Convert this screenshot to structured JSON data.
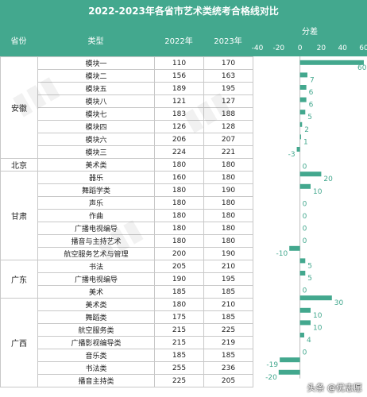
{
  "title": "2022-2023年各省市艺术类统考合格线对比",
  "headers": {
    "province": "省份",
    "category": "类型",
    "y2022": "2022年",
    "y2023": "2023年",
    "diff": "分差"
  },
  "chart_data": {
    "type": "bar",
    "orientation": "horizontal",
    "title": "分差",
    "xlim": [
      -40,
      60
    ],
    "ticks": [
      "-40",
      "-20",
      "0",
      "20",
      "40",
      "60"
    ],
    "tick_values": [
      -40,
      -20,
      0,
      20,
      40,
      60
    ],
    "bar_color": "#43a88e",
    "groups": [
      {
        "province": "安徽",
        "rows": [
          {
            "category": "模块一",
            "y2022": "110",
            "y2023": "170",
            "diff": 60
          },
          {
            "category": "模块二",
            "y2022": "156",
            "y2023": "163",
            "diff": 7
          },
          {
            "category": "模块五",
            "y2022": "189",
            "y2023": "195",
            "diff": 6
          },
          {
            "category": "模块八",
            "y2022": "121",
            "y2023": "127",
            "diff": 6
          },
          {
            "category": "模块七",
            "y2022": "183",
            "y2023": "188",
            "diff": 5
          },
          {
            "category": "模块四",
            "y2022": "126",
            "y2023": "128",
            "diff": 2
          },
          {
            "category": "模块六",
            "y2022": "206",
            "y2023": "207",
            "diff": 1
          },
          {
            "category": "模块三",
            "y2022": "224",
            "y2023": "221",
            "diff": -3
          }
        ]
      },
      {
        "province": "北京",
        "rows": [
          {
            "category": "美术类",
            "y2022": "180",
            "y2023": "180",
            "diff": 0
          }
        ]
      },
      {
        "province": "甘肃",
        "rows": [
          {
            "category": "器乐",
            "y2022": "160",
            "y2023": "180",
            "diff": 20
          },
          {
            "category": "舞蹈学类",
            "y2022": "180",
            "y2023": "190",
            "diff": 10
          },
          {
            "category": "声乐",
            "y2022": "180",
            "y2023": "180",
            "diff": 0
          },
          {
            "category": "作曲",
            "y2022": "180",
            "y2023": "180",
            "diff": 0
          },
          {
            "category": "广播电视编导",
            "y2022": "180",
            "y2023": "180",
            "diff": 0
          },
          {
            "category": "播音与主持艺术",
            "y2022": "180",
            "y2023": "180",
            "diff": 0
          },
          {
            "category": "航空服务艺术与管理",
            "y2022": "200",
            "y2023": "190",
            "diff": -10
          }
        ]
      },
      {
        "province": "广东",
        "rows": [
          {
            "category": "书法",
            "y2022": "205",
            "y2023": "210",
            "diff": 5
          },
          {
            "category": "广播电视编导",
            "y2022": "190",
            "y2023": "195",
            "diff": 5
          },
          {
            "category": "美术",
            "y2022": "185",
            "y2023": "185",
            "diff": 0
          }
        ]
      },
      {
        "province": "广西",
        "rows": [
          {
            "category": "美术类",
            "y2022": "180",
            "y2023": "210",
            "diff": 30
          },
          {
            "category": "舞蹈类",
            "y2022": "175",
            "y2023": "185",
            "diff": 10
          },
          {
            "category": "航空服务类",
            "y2022": "215",
            "y2023": "225",
            "diff": 10
          },
          {
            "category": "广播影视编导类",
            "y2022": "215",
            "y2023": "219",
            "diff": 4
          },
          {
            "category": "音乐类",
            "y2022": "185",
            "y2023": "185",
            "diff": 0
          },
          {
            "category": "书法类",
            "y2022": "255",
            "y2023": "236",
            "diff": -19
          },
          {
            "category": "播音主持类",
            "y2022": "225",
            "y2023": "205",
            "diff": -20
          }
        ]
      }
    ]
  },
  "credit": "头条 @优志愿"
}
